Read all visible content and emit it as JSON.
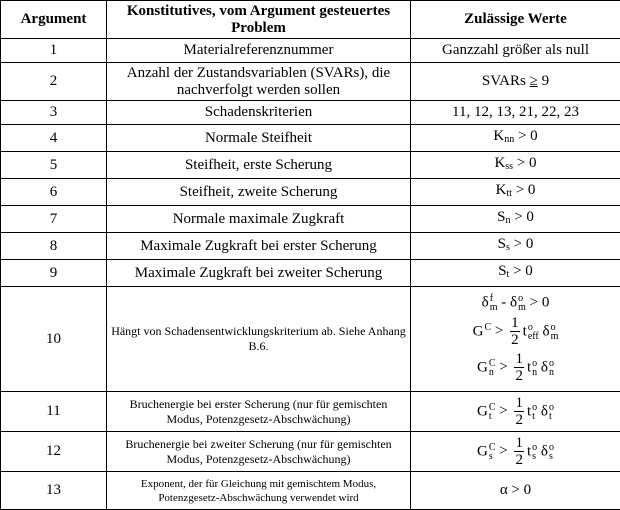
{
  "headers": [
    "Argument",
    "Konstitutives, vom Argument gesteuertes Problem",
    "Zulässige Werte"
  ],
  "rows": [
    {
      "arg": "1",
      "desc": "Materialreferenznummer",
      "values": [
        [
          {
            "t": "Ganzzahl größer als null"
          }
        ]
      ]
    },
    {
      "arg": "2",
      "desc": "Anzahl der Zustandsvariablen (SVARs), die nachverfolgt werden sollen",
      "values": [
        [
          {
            "t": "SVARs "
          },
          {
            "t": "≥",
            "u": true
          },
          {
            "t": " 9"
          }
        ]
      ]
    },
    {
      "arg": "3",
      "desc": "Schadenskriterien",
      "values": [
        [
          {
            "t": "11, 12, 13, 21, 22, 23"
          }
        ]
      ]
    },
    {
      "arg": "4",
      "desc": "Normale Steifheit",
      "values": [
        [
          {
            "b": "K",
            "sub": "nn",
            "lo": true
          },
          {
            "t": " > 0"
          }
        ]
      ]
    },
    {
      "arg": "5",
      "desc": "Steifheit, erste Scherung",
      "values": [
        [
          {
            "b": "K",
            "sub": "ss",
            "lo": true
          },
          {
            "t": " > 0"
          }
        ]
      ]
    },
    {
      "arg": "6",
      "desc": "Steifheit, zweite Scherung",
      "values": [
        [
          {
            "b": "K",
            "sub": "tt",
            "lo": true
          },
          {
            "t": " > 0"
          }
        ]
      ]
    },
    {
      "arg": "7",
      "desc": "Normale maximale Zugkraft",
      "values": [
        [
          {
            "b": "S",
            "sub": "n",
            "lo": true
          },
          {
            "t": " > 0"
          }
        ]
      ]
    },
    {
      "arg": "8",
      "desc": "Maximale Zugkraft bei erster Scherung",
      "values": [
        [
          {
            "b": "S",
            "sub": "s",
            "lo": true
          },
          {
            "t": " > 0"
          }
        ]
      ]
    },
    {
      "arg": "9",
      "desc": "Maximale Zugkraft bei zweiter Scherung",
      "values": [
        [
          {
            "b": "S",
            "sub": "t",
            "lo": true
          },
          {
            "t": " > 0"
          }
        ]
      ]
    },
    {
      "arg": "10",
      "desc": "Hängt von Schadensentwicklungskriterium ab. Siehe Anhang B.6.",
      "small": true,
      "values": [
        [
          {
            "b": "δ",
            "sup": "f",
            "sub": "m"
          },
          {
            "t": " - "
          },
          {
            "b": "δ",
            "sup": "o",
            "sub": "m"
          },
          {
            "t": " > 0"
          }
        ],
        [
          {
            "b": "G",
            "sup": "C"
          },
          {
            "t": " > "
          },
          {
            "frac": [
              "1",
              "2"
            ]
          },
          {
            "b": "t",
            "sup": "o",
            "sub": "eff"
          },
          {
            "b": "δ",
            "sup": "o",
            "sub": "m"
          }
        ],
        [
          {
            "b": "G",
            "sup": "C",
            "sub": "n"
          },
          {
            "t": " > "
          },
          {
            "frac": [
              "1",
              "2"
            ]
          },
          {
            "b": "t",
            "sup": "o",
            "sub": "n"
          },
          {
            "b": "δ",
            "sup": "o",
            "sub": "n"
          }
        ]
      ]
    },
    {
      "arg": "11",
      "desc": "Bruchenergie bei erster Scherung (nur für gemischten Modus, Potenzgesetz-Abschwächung)",
      "small": true,
      "values": [
        [
          {
            "b": "G",
            "sup": "C",
            "sub": "t"
          },
          {
            "t": " > "
          },
          {
            "frac": [
              "1",
              "2"
            ]
          },
          {
            "b": "t",
            "sup": "o",
            "sub": "t"
          },
          {
            "b": "δ",
            "sup": "o",
            "sub": "t"
          }
        ]
      ]
    },
    {
      "arg": "12",
      "desc": "Bruchenergie bei zweiter Scherung (nur für gemischten Modus, Potenzgesetz-Abschwächung)",
      "small": true,
      "values": [
        [
          {
            "b": "G",
            "sup": "C",
            "sub": "s"
          },
          {
            "t": " > "
          },
          {
            "frac": [
              "1",
              "2"
            ]
          },
          {
            "b": "t",
            "sup": "o",
            "sub": "s"
          },
          {
            "b": "δ",
            "sup": "o",
            "sub": "s"
          }
        ]
      ]
    },
    {
      "arg": "13",
      "desc": "Exponent, der für Gleichung mit gemischtem Modus, Potenzgesetz-Abschwächung verwendet wird",
      "tiny": true,
      "values": [
        [
          {
            "t": "α > 0"
          }
        ]
      ]
    }
  ]
}
